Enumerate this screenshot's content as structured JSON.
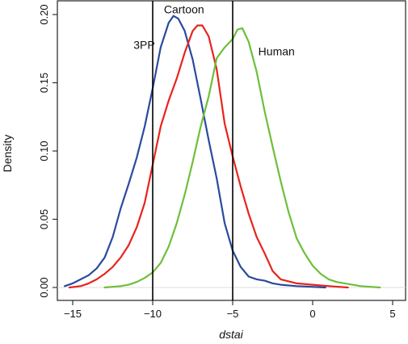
{
  "chart_data": {
    "type": "line",
    "title": "",
    "xlabel": "dstai",
    "ylabel": "Density",
    "xlim": [
      -16,
      6
    ],
    "ylim": [
      0,
      0.21
    ],
    "x_ticks": [
      -15,
      -10,
      -5,
      0,
      5
    ],
    "y_ticks": [
      0.0,
      0.05,
      0.1,
      0.15,
      0.2
    ],
    "x_tick_labels": [
      "−15",
      "−10",
      "−5",
      "0",
      "5"
    ],
    "y_tick_labels": [
      "0.00",
      "0.05",
      "0.10",
      "0.15",
      "0.20"
    ],
    "grid": false,
    "vlines": [
      -10,
      -5
    ],
    "series": [
      {
        "name": "3PP",
        "color": "#2a4a9e",
        "label_at": [
          -11.2,
          0.175
        ],
        "points": [
          [
            -15.5,
            0.001
          ],
          [
            -15.0,
            0.003
          ],
          [
            -14.5,
            0.006
          ],
          [
            -14.0,
            0.009
          ],
          [
            -13.5,
            0.014
          ],
          [
            -13.0,
            0.022
          ],
          [
            -12.5,
            0.037
          ],
          [
            -12.0,
            0.058
          ],
          [
            -11.5,
            0.076
          ],
          [
            -11.0,
            0.095
          ],
          [
            -10.5,
            0.118
          ],
          [
            -10.0,
            0.146
          ],
          [
            -9.5,
            0.176
          ],
          [
            -9.0,
            0.194
          ],
          [
            -8.7,
            0.199
          ],
          [
            -8.4,
            0.197
          ],
          [
            -8.0,
            0.188
          ],
          [
            -7.5,
            0.167
          ],
          [
            -7.0,
            0.138
          ],
          [
            -6.5,
            0.108
          ],
          [
            -6.0,
            0.08
          ],
          [
            -5.5,
            0.047
          ],
          [
            -5.0,
            0.027
          ],
          [
            -4.5,
            0.015
          ],
          [
            -4.0,
            0.008
          ],
          [
            -3.5,
            0.006
          ],
          [
            -3.0,
            0.005
          ],
          [
            -2.5,
            0.003
          ],
          [
            -2.0,
            0.002
          ],
          [
            -1.0,
            0.001
          ],
          [
            0.8,
            0.0
          ]
        ]
      },
      {
        "name": "Cartoon",
        "color": "#e8231d",
        "label_at": [
          -9.3,
          0.201
        ],
        "points": [
          [
            -15.2,
            0.0
          ],
          [
            -14.5,
            0.001
          ],
          [
            -14.0,
            0.003
          ],
          [
            -13.5,
            0.006
          ],
          [
            -13.0,
            0.01
          ],
          [
            -12.5,
            0.015
          ],
          [
            -12.0,
            0.022
          ],
          [
            -11.5,
            0.031
          ],
          [
            -11.0,
            0.044
          ],
          [
            -10.5,
            0.062
          ],
          [
            -10.0,
            0.09
          ],
          [
            -9.5,
            0.118
          ],
          [
            -9.0,
            0.137
          ],
          [
            -8.5,
            0.153
          ],
          [
            -8.0,
            0.172
          ],
          [
            -7.5,
            0.188
          ],
          [
            -7.2,
            0.192
          ],
          [
            -6.9,
            0.192
          ],
          [
            -6.5,
            0.184
          ],
          [
            -6.0,
            0.16
          ],
          [
            -5.5,
            0.12
          ],
          [
            -5.0,
            0.096
          ],
          [
            -4.5,
            0.074
          ],
          [
            -4.0,
            0.054
          ],
          [
            -3.5,
            0.037
          ],
          [
            -3.0,
            0.025
          ],
          [
            -2.5,
            0.012
          ],
          [
            -2.0,
            0.006
          ],
          [
            -1.0,
            0.003
          ],
          [
            0.0,
            0.002
          ],
          [
            1.0,
            0.001
          ],
          [
            2.2,
            0.0
          ]
        ]
      },
      {
        "name": "Human",
        "color": "#6dbf3a",
        "label_at": [
          -3.4,
          0.17
        ],
        "points": [
          [
            -13.0,
            0.0
          ],
          [
            -12.0,
            0.001
          ],
          [
            -11.5,
            0.002
          ],
          [
            -11.0,
            0.004
          ],
          [
            -10.5,
            0.007
          ],
          [
            -10.0,
            0.011
          ],
          [
            -9.5,
            0.018
          ],
          [
            -9.0,
            0.03
          ],
          [
            -8.5,
            0.047
          ],
          [
            -8.0,
            0.068
          ],
          [
            -7.5,
            0.092
          ],
          [
            -7.0,
            0.118
          ],
          [
            -6.5,
            0.14
          ],
          [
            -6.0,
            0.168
          ],
          [
            -5.5,
            0.176
          ],
          [
            -5.0,
            0.182
          ],
          [
            -4.7,
            0.189
          ],
          [
            -4.4,
            0.19
          ],
          [
            -4.0,
            0.18
          ],
          [
            -3.5,
            0.158
          ],
          [
            -3.0,
            0.129
          ],
          [
            -2.5,
            0.103
          ],
          [
            -2.0,
            0.078
          ],
          [
            -1.5,
            0.055
          ],
          [
            -1.0,
            0.036
          ],
          [
            -0.5,
            0.025
          ],
          [
            0.0,
            0.016
          ],
          [
            0.5,
            0.01
          ],
          [
            1.0,
            0.006
          ],
          [
            1.5,
            0.004
          ],
          [
            2.0,
            0.003
          ],
          [
            3.0,
            0.001
          ],
          [
            4.2,
            0.0
          ]
        ]
      }
    ]
  }
}
